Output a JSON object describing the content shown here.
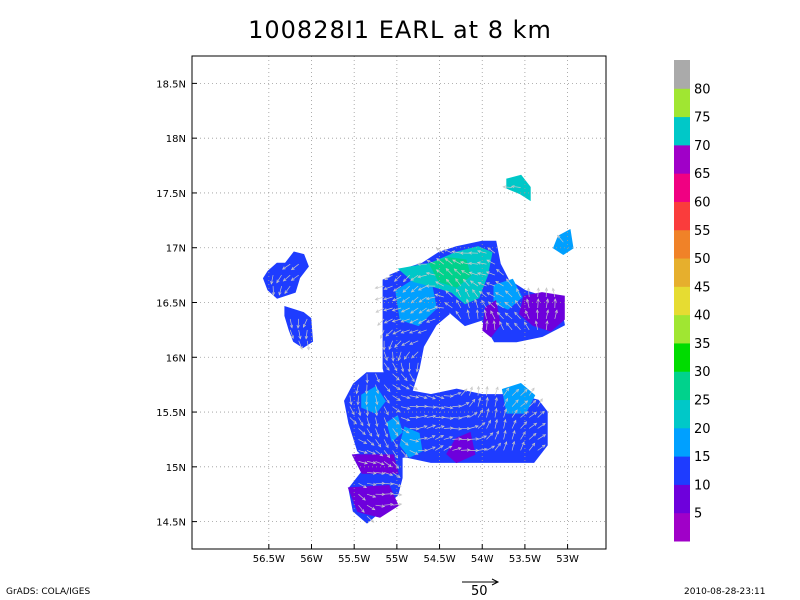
{
  "title": "100828I1 EARL at 8 km",
  "footer": {
    "left": "GrADS: COLA/IGES",
    "right": "2010-08-28-23:11"
  },
  "reference_vector": {
    "label": "50"
  },
  "map": {
    "lon_range": [
      -57.4,
      -52.55
    ],
    "lat_range": [
      14.25,
      18.75
    ],
    "lon_ticks": [
      {
        "v": -56.5,
        "label": "56.5W"
      },
      {
        "v": -56.0,
        "label": "56W"
      },
      {
        "v": -55.5,
        "label": "55.5W"
      },
      {
        "v": -55.0,
        "label": "55W"
      },
      {
        "v": -54.5,
        "label": "54.5W"
      },
      {
        "v": -54.0,
        "label": "54W"
      },
      {
        "v": -53.5,
        "label": "53.5W"
      },
      {
        "v": -53.0,
        "label": "53W"
      }
    ],
    "lat_ticks": [
      {
        "v": 14.5,
        "label": "14.5N"
      },
      {
        "v": 15.0,
        "label": "15N"
      },
      {
        "v": 15.5,
        "label": "15.5N"
      },
      {
        "v": 16.0,
        "label": "16N"
      },
      {
        "v": 16.5,
        "label": "16.5N"
      },
      {
        "v": 17.0,
        "label": "17N"
      },
      {
        "v": 17.5,
        "label": "17.5N"
      },
      {
        "v": 18.0,
        "label": "18N"
      },
      {
        "v": 18.5,
        "label": "18.5N"
      }
    ],
    "grid": true
  },
  "colorbar": {
    "labels": [
      "5",
      "10",
      "15",
      "20",
      "25",
      "30",
      "35",
      "40",
      "45",
      "50",
      "55",
      "60",
      "65",
      "70",
      "75",
      "80"
    ],
    "colors": [
      "#a000c8",
      "#6e00dc",
      "#1e3cff",
      "#00a0ff",
      "#00c8c8",
      "#00d28c",
      "#00dc00",
      "#a0e632",
      "#e6dc32",
      "#e6af2d",
      "#f08228",
      "#fa3c3c",
      "#f00082",
      "#a000c8",
      "#00c8c8",
      "#a0e632",
      "#aaaaaa"
    ]
  },
  "wind_speed_regions": [
    {
      "name": "northwest-blob",
      "level_color": "#1e3cff",
      "poly": [
        [
          -56.55,
          16.72
        ],
        [
          -56.5,
          16.78
        ],
        [
          -56.4,
          16.85
        ],
        [
          -56.3,
          16.85
        ],
        [
          -56.2,
          16.95
        ],
        [
          -56.1,
          16.93
        ],
        [
          -56.05,
          16.83
        ],
        [
          -56.15,
          16.73
        ],
        [
          -56.2,
          16.6
        ],
        [
          -56.4,
          16.55
        ],
        [
          -56.5,
          16.62
        ]
      ]
    },
    {
      "name": "west-small-blob",
      "level_color": "#1e3cff",
      "poly": [
        [
          -56.3,
          16.45
        ],
        [
          -56.1,
          16.4
        ],
        [
          -56.02,
          16.35
        ],
        [
          -56.0,
          16.15
        ],
        [
          -56.1,
          16.1
        ],
        [
          -56.2,
          16.15
        ],
        [
          -56.25,
          16.25
        ],
        [
          -56.3,
          16.38
        ]
      ]
    },
    {
      "name": "northeast-speck",
      "level_color": "#00c8c8",
      "poly": [
        [
          -53.7,
          17.62
        ],
        [
          -53.55,
          17.65
        ],
        [
          -53.45,
          17.55
        ],
        [
          -53.45,
          17.45
        ],
        [
          -53.55,
          17.5
        ],
        [
          -53.7,
          17.55
        ]
      ]
    },
    {
      "name": "east-speck",
      "level_color": "#00a0ff",
      "poly": [
        [
          -53.1,
          17.1
        ],
        [
          -52.98,
          17.15
        ],
        [
          -52.95,
          17.0
        ],
        [
          -53.05,
          16.95
        ],
        [
          -53.15,
          17.0
        ]
      ]
    },
    {
      "name": "main-vertical-arm",
      "level_color": "#1e3cff",
      "poly": [
        [
          -55.15,
          16.7
        ],
        [
          -55.0,
          16.75
        ],
        [
          -54.9,
          16.78
        ],
        [
          -54.7,
          16.7
        ],
        [
          -54.5,
          16.65
        ],
        [
          -54.4,
          16.4
        ],
        [
          -54.55,
          16.3
        ],
        [
          -54.7,
          16.1
        ],
        [
          -54.75,
          15.9
        ],
        [
          -54.85,
          15.65
        ],
        [
          -55.0,
          15.6
        ],
        [
          -55.1,
          15.75
        ],
        [
          -55.15,
          15.9
        ],
        [
          -55.15,
          16.2
        ],
        [
          -55.15,
          16.45
        ]
      ]
    },
    {
      "name": "main-north-band",
      "level_color": "#1e3cff",
      "poly": [
        [
          -55.05,
          16.75
        ],
        [
          -54.9,
          16.8
        ],
        [
          -54.7,
          16.85
        ],
        [
          -54.5,
          16.95
        ],
        [
          -54.3,
          17.0
        ],
        [
          -54.0,
          17.05
        ],
        [
          -53.85,
          17.05
        ],
        [
          -53.8,
          16.85
        ],
        [
          -53.7,
          16.7
        ],
        [
          -53.5,
          16.6
        ],
        [
          -53.3,
          16.55
        ],
        [
          -53.1,
          16.5
        ],
        [
          -53.05,
          16.3
        ],
        [
          -53.3,
          16.2
        ],
        [
          -53.6,
          16.15
        ],
        [
          -53.85,
          16.15
        ],
        [
          -54.0,
          16.35
        ],
        [
          -54.2,
          16.3
        ],
        [
          -54.35,
          16.4
        ],
        [
          -54.55,
          16.55
        ],
        [
          -54.75,
          16.65
        ]
      ]
    },
    {
      "name": "main-south-body",
      "level_color": "#1e3cff",
      "poly": [
        [
          -55.5,
          15.75
        ],
        [
          -55.35,
          15.85
        ],
        [
          -55.15,
          15.85
        ],
        [
          -54.95,
          15.7
        ],
        [
          -54.6,
          15.65
        ],
        [
          -54.3,
          15.7
        ],
        [
          -54.0,
          15.65
        ],
        [
          -53.6,
          15.65
        ],
        [
          -53.35,
          15.6
        ],
        [
          -53.25,
          15.5
        ],
        [
          -53.25,
          15.2
        ],
        [
          -53.4,
          15.05
        ],
        [
          -53.8,
          15.05
        ],
        [
          -54.3,
          15.05
        ],
        [
          -54.6,
          15.05
        ],
        [
          -54.9,
          15.1
        ],
        [
          -55.3,
          15.05
        ],
        [
          -55.45,
          15.15
        ],
        [
          -55.55,
          15.4
        ],
        [
          -55.6,
          15.6
        ]
      ]
    },
    {
      "name": "main-southwest-lobe",
      "level_color": "#1e3cff",
      "poly": [
        [
          -55.5,
          15.1
        ],
        [
          -55.1,
          15.15
        ],
        [
          -54.95,
          15.1
        ],
        [
          -54.95,
          14.9
        ],
        [
          -55.0,
          14.75
        ],
        [
          -55.2,
          14.6
        ],
        [
          -55.35,
          14.5
        ],
        [
          -55.5,
          14.6
        ],
        [
          -55.55,
          14.8
        ],
        [
          -55.4,
          14.95
        ]
      ]
    },
    {
      "name": "inner-light-1",
      "level_color": "#00a0ff",
      "poly": [
        [
          -55.4,
          15.65
        ],
        [
          -55.25,
          15.72
        ],
        [
          -55.15,
          15.6
        ],
        [
          -55.25,
          15.5
        ],
        [
          -55.4,
          15.55
        ]
      ]
    },
    {
      "name": "inner-light-2",
      "level_color": "#00a0ff",
      "poly": [
        [
          -55.1,
          15.4
        ],
        [
          -55.0,
          15.45
        ],
        [
          -54.95,
          15.32
        ],
        [
          -55.05,
          15.25
        ]
      ]
    },
    {
      "name": "inner-light-3",
      "level_color": "#00a0ff",
      "poly": [
        [
          -54.9,
          15.35
        ],
        [
          -54.75,
          15.3
        ],
        [
          -54.72,
          15.15
        ],
        [
          -54.85,
          15.1
        ],
        [
          -54.95,
          15.2
        ]
      ]
    },
    {
      "name": "inner-light-4",
      "level_color": "#00a0ff",
      "poly": [
        [
          -55.0,
          16.6
        ],
        [
          -54.8,
          16.7
        ],
        [
          -54.6,
          16.65
        ],
        [
          -54.55,
          16.45
        ],
        [
          -54.75,
          16.3
        ],
        [
          -54.95,
          16.35
        ]
      ]
    },
    {
      "name": "inner-light-5",
      "level_color": "#00a0ff",
      "poly": [
        [
          -53.75,
          15.7
        ],
        [
          -53.55,
          15.75
        ],
        [
          -53.4,
          15.65
        ],
        [
          -53.5,
          15.5
        ],
        [
          -53.7,
          15.5
        ]
      ]
    },
    {
      "name": "inner-light-6",
      "level_color": "#00a0ff",
      "poly": [
        [
          -53.85,
          16.65
        ],
        [
          -53.65,
          16.7
        ],
        [
          -53.55,
          16.55
        ],
        [
          -53.7,
          16.45
        ],
        [
          -53.85,
          16.5
        ]
      ]
    },
    {
      "name": "cyan-core",
      "level_color": "#00c8c8",
      "poly": [
        [
          -54.95,
          16.8
        ],
        [
          -54.6,
          16.85
        ],
        [
          -54.3,
          16.95
        ],
        [
          -54.05,
          17.0
        ],
        [
          -53.9,
          16.95
        ],
        [
          -53.95,
          16.75
        ],
        [
          -54.05,
          16.55
        ],
        [
          -54.2,
          16.5
        ],
        [
          -54.35,
          16.6
        ],
        [
          -54.55,
          16.65
        ],
        [
          -54.8,
          16.7
        ]
      ]
    },
    {
      "name": "green-core",
      "level_color": "#00d28c",
      "poly": [
        [
          -54.6,
          16.85
        ],
        [
          -54.4,
          16.9
        ],
        [
          -54.2,
          16.88
        ],
        [
          -54.15,
          16.75
        ],
        [
          -54.3,
          16.65
        ],
        [
          -54.5,
          16.7
        ]
      ]
    },
    {
      "name": "purple-east",
      "level_color": "#6e00dc",
      "poly": [
        [
          -53.5,
          16.55
        ],
        [
          -53.3,
          16.58
        ],
        [
          -53.05,
          16.55
        ],
        [
          -53.05,
          16.35
        ],
        [
          -53.2,
          16.25
        ],
        [
          -53.4,
          16.3
        ],
        [
          -53.55,
          16.4
        ]
      ]
    },
    {
      "name": "purple-east-2",
      "level_color": "#6e00dc",
      "poly": [
        [
          -53.95,
          16.45
        ],
        [
          -53.85,
          16.5
        ],
        [
          -53.8,
          16.3
        ],
        [
          -53.9,
          16.2
        ],
        [
          -53.98,
          16.25
        ]
      ]
    },
    {
      "name": "purple-mid",
      "level_color": "#6e00dc",
      "poly": [
        [
          -54.3,
          15.25
        ],
        [
          -54.15,
          15.3
        ],
        [
          -54.1,
          15.12
        ],
        [
          -54.3,
          15.05
        ],
        [
          -54.4,
          15.12
        ]
      ]
    },
    {
      "name": "purple-south",
      "level_color": "#6e00dc",
      "poly": [
        [
          -55.5,
          15.1
        ],
        [
          -55.05,
          15.1
        ],
        [
          -55.0,
          14.95
        ],
        [
          -55.4,
          14.95
        ]
      ]
    },
    {
      "name": "purple-southwest",
      "level_color": "#6e00dc",
      "poly": [
        [
          -55.55,
          14.8
        ],
        [
          -55.1,
          14.82
        ],
        [
          -55.0,
          14.65
        ],
        [
          -55.2,
          14.55
        ],
        [
          -55.45,
          14.6
        ]
      ]
    }
  ]
}
